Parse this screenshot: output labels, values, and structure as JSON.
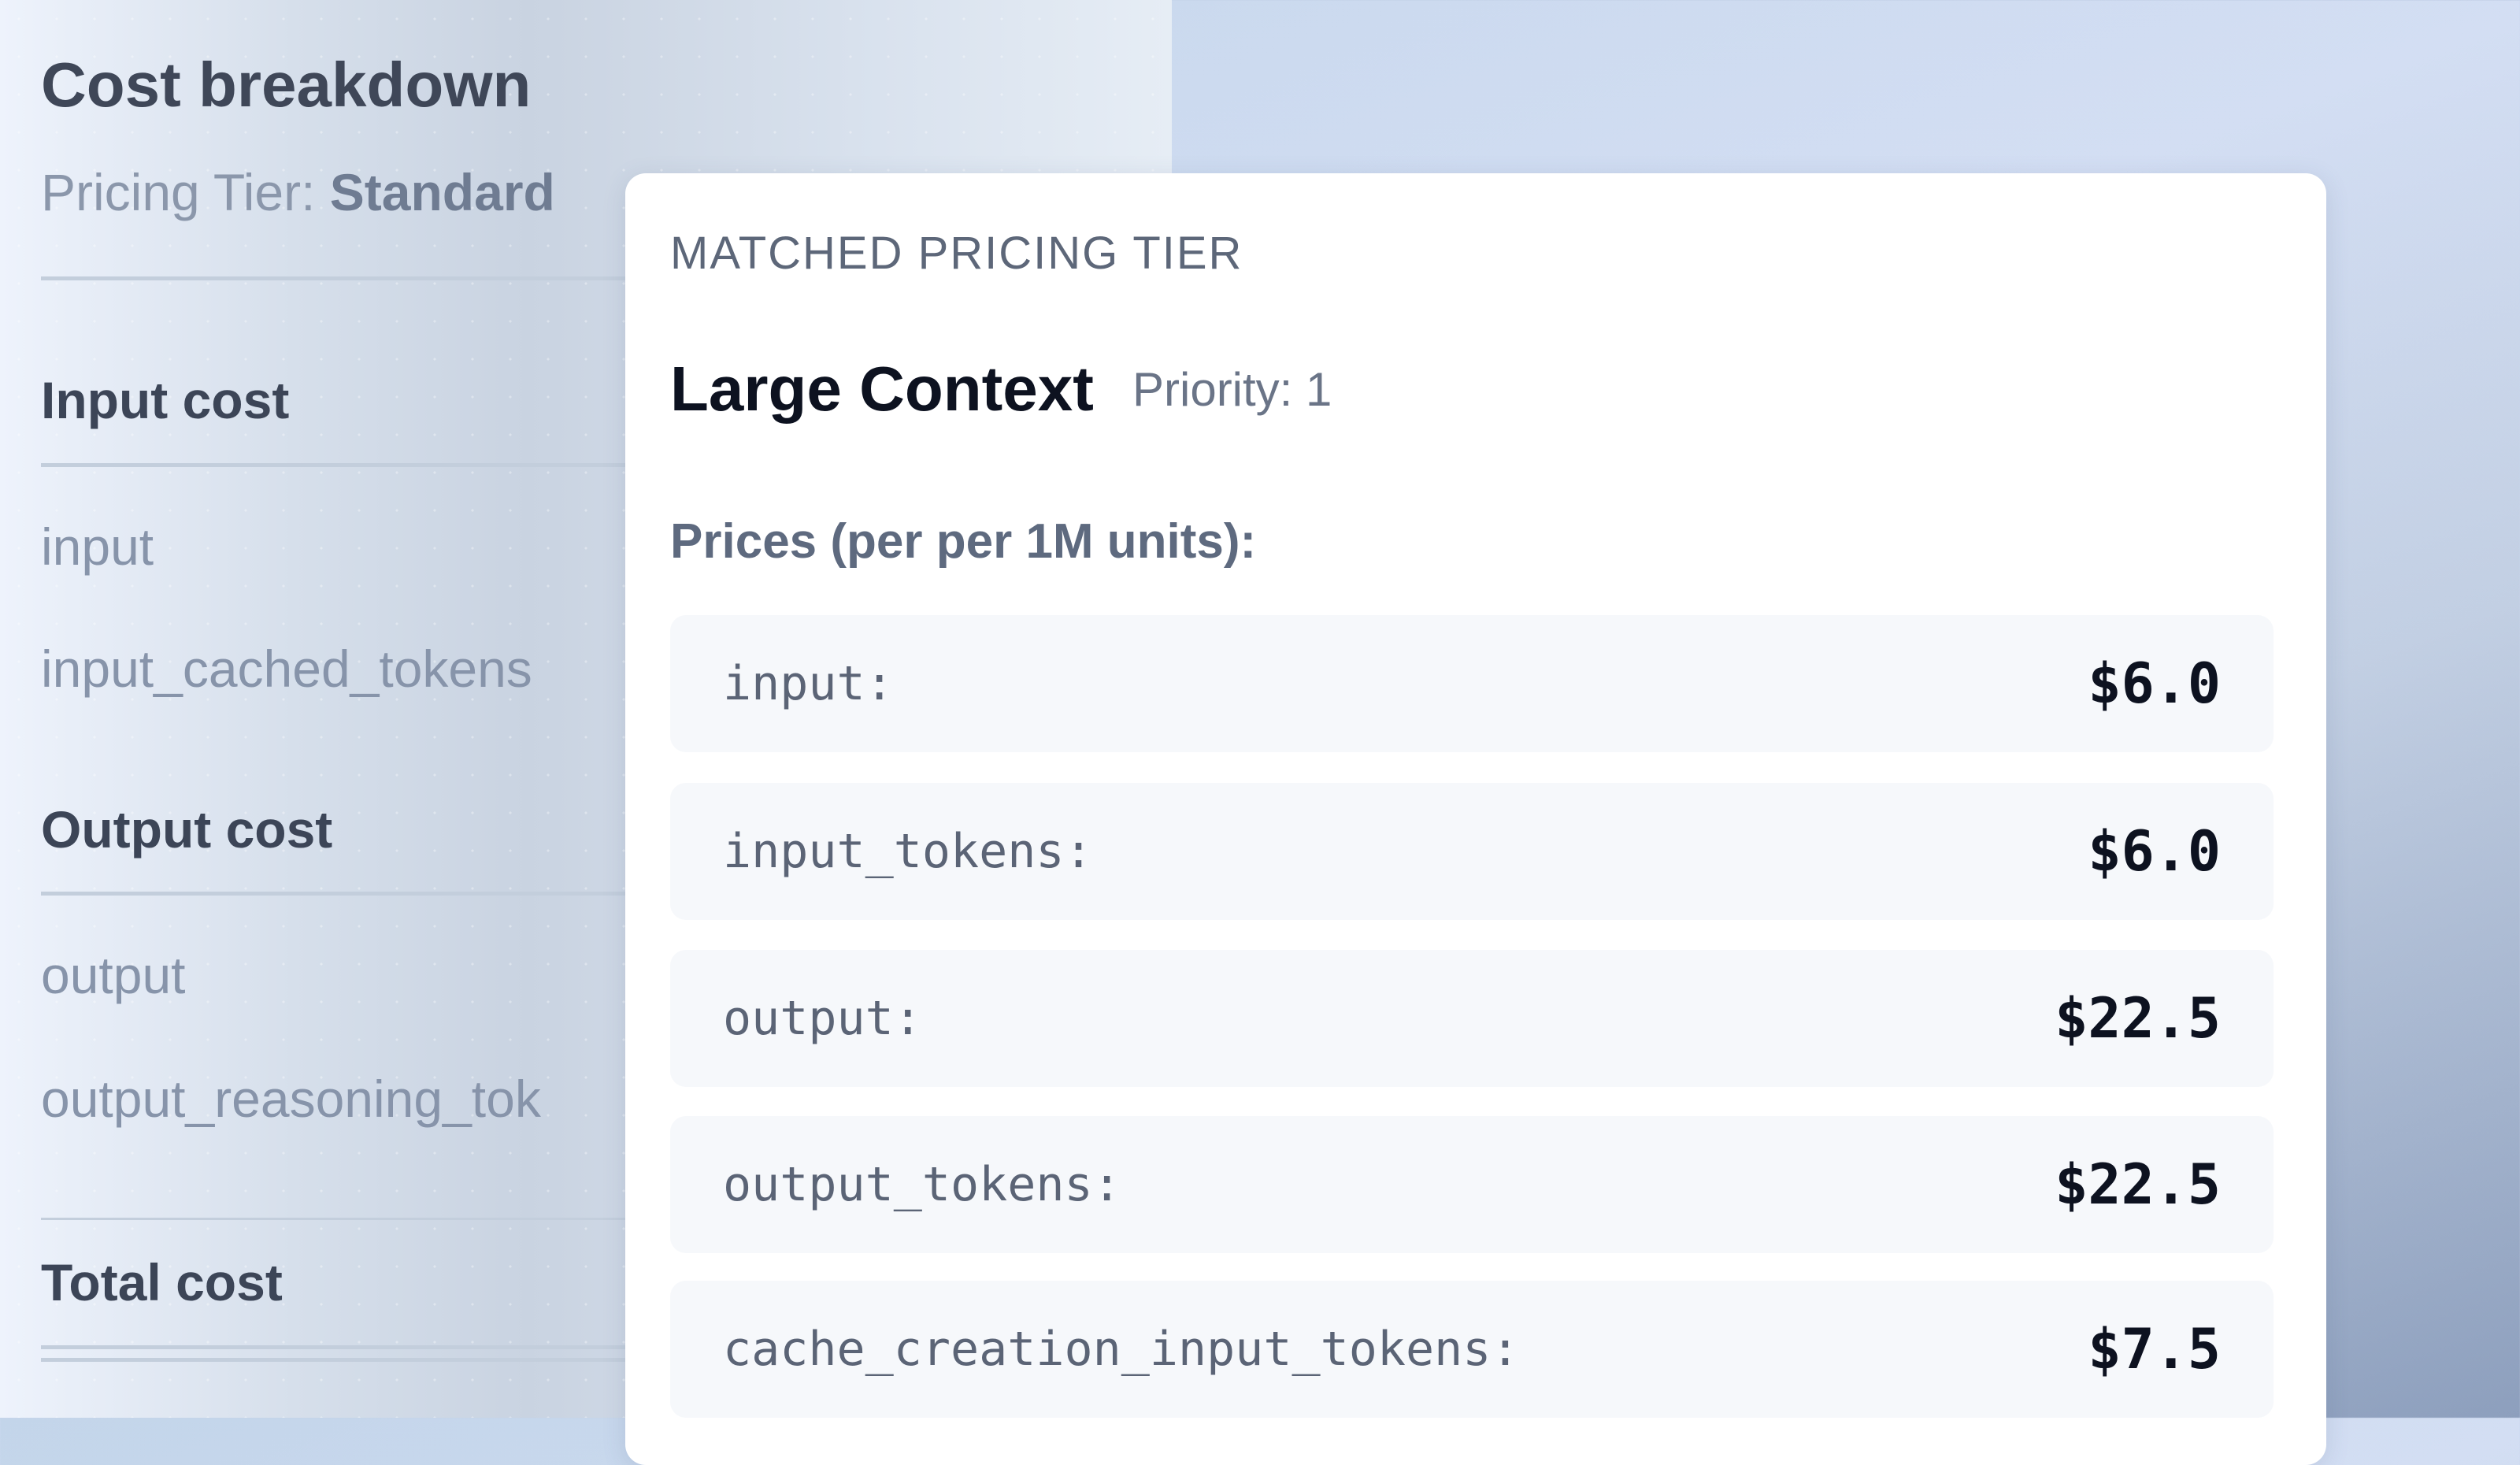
{
  "breakdown": {
    "title": "Cost breakdown",
    "tier_label": "Pricing Tier:",
    "tier_value": "Standard",
    "input_heading": "Input cost",
    "input_items": [
      "input",
      "input_cached_tokens"
    ],
    "output_heading": "Output cost",
    "output_items": [
      "output",
      "output_reasoning_tok"
    ],
    "total_heading": "Total cost"
  },
  "popover": {
    "caption": "MATCHED PRICING TIER",
    "tier_name": "Large Context",
    "priority": "Priority: 1",
    "prices_label": "Prices (per per 1M units):",
    "prices": [
      {
        "key": "input:",
        "value": "$6.0"
      },
      {
        "key": "input_tokens:",
        "value": "$6.0"
      },
      {
        "key": "output:",
        "value": "$22.5"
      },
      {
        "key": "output_tokens:",
        "value": "$22.5"
      },
      {
        "key": "cache_creation_input_tokens:",
        "value": "$7.5"
      }
    ]
  }
}
